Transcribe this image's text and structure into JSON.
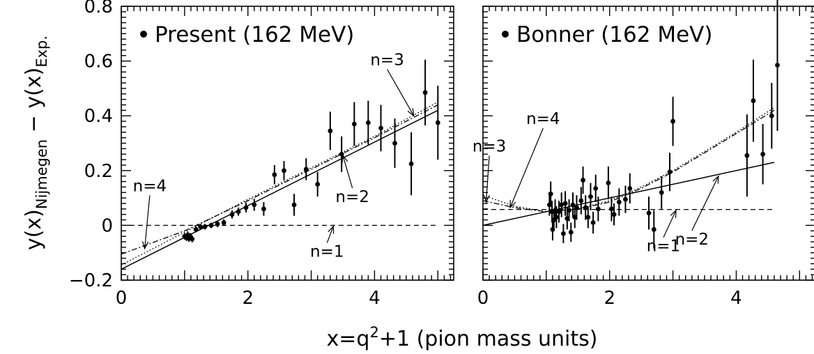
{
  "chart_data": [
    {
      "type": "scatter",
      "legend_text": "Present (162 MeV)",
      "legend_placement": "top-left",
      "xlim": [
        0,
        5.25
      ],
      "ylim": [
        -0.2,
        0.8
      ],
      "x_ticks": [
        0,
        2,
        4
      ],
      "y_ticks": [
        -0.2,
        0,
        0.2,
        0.4,
        0.6,
        0.8
      ],
      "y_tick_labels": [
        "−0.2",
        "0",
        "0.2",
        "0.4",
        "0.6",
        "0.8"
      ],
      "grid": false,
      "points": [
        {
          "x": 1.0,
          "y": -0.04,
          "err": 0.012
        },
        {
          "x": 1.03,
          "y": -0.045,
          "err": 0.012
        },
        {
          "x": 1.05,
          "y": -0.035,
          "err": 0.012
        },
        {
          "x": 1.07,
          "y": -0.048,
          "err": 0.012
        },
        {
          "x": 1.09,
          "y": -0.04,
          "err": 0.012
        },
        {
          "x": 1.12,
          "y": -0.05,
          "err": 0.012
        },
        {
          "x": 1.18,
          "y": -0.015,
          "err": 0.01
        },
        {
          "x": 1.25,
          "y": -0.005,
          "err": 0.01
        },
        {
          "x": 1.32,
          "y": -0.005,
          "err": 0.01
        },
        {
          "x": 1.42,
          "y": 0.0,
          "err": 0.01
        },
        {
          "x": 1.52,
          "y": 0.005,
          "err": 0.012
        },
        {
          "x": 1.62,
          "y": 0.01,
          "err": 0.012
        },
        {
          "x": 1.75,
          "y": 0.04,
          "err": 0.015
        },
        {
          "x": 1.85,
          "y": 0.05,
          "err": 0.015
        },
        {
          "x": 1.97,
          "y": 0.065,
          "err": 0.018
        },
        {
          "x": 2.1,
          "y": 0.075,
          "err": 0.022
        },
        {
          "x": 2.25,
          "y": 0.06,
          "err": 0.025
        },
        {
          "x": 2.42,
          "y": 0.185,
          "err": 0.035
        },
        {
          "x": 2.57,
          "y": 0.2,
          "err": 0.035
        },
        {
          "x": 2.73,
          "y": 0.075,
          "err": 0.04
        },
        {
          "x": 2.92,
          "y": 0.205,
          "err": 0.04
        },
        {
          "x": 3.1,
          "y": 0.15,
          "err": 0.045
        },
        {
          "x": 3.3,
          "y": 0.345,
          "err": 0.07
        },
        {
          "x": 3.48,
          "y": 0.26,
          "err": 0.065
        },
        {
          "x": 3.68,
          "y": 0.37,
          "err": 0.08
        },
        {
          "x": 3.9,
          "y": 0.375,
          "err": 0.08
        },
        {
          "x": 4.1,
          "y": 0.355,
          "err": 0.085
        },
        {
          "x": 4.32,
          "y": 0.3,
          "err": 0.09
        },
        {
          "x": 4.58,
          "y": 0.225,
          "err": 0.115
        },
        {
          "x": 4.8,
          "y": 0.485,
          "err": 0.12
        },
        {
          "x": 5.0,
          "y": 0.375,
          "err": 0.135
        }
      ],
      "fits": [
        {
          "name": "n=1",
          "style": "dashed",
          "x": [
            0,
            5
          ],
          "y": [
            0,
            0
          ]
        },
        {
          "name": "n=2",
          "style": "solid",
          "x": [
            0,
            5
          ],
          "y": [
            -0.16,
            0.42
          ]
        },
        {
          "name": "n=3",
          "style": "dotted",
          "x": [
            0,
            1,
            2,
            3,
            4,
            5
          ],
          "y": [
            -0.145,
            -0.025,
            0.095,
            0.21,
            0.325,
            0.45
          ]
        },
        {
          "name": "n=4",
          "style": "dashdot",
          "x": [
            0,
            1,
            2,
            3,
            4,
            5
          ],
          "y": [
            -0.105,
            -0.02,
            0.09,
            0.205,
            0.32,
            0.44
          ]
        }
      ],
      "labels": [
        {
          "text": "n=3",
          "x": 4.2,
          "y": 0.585,
          "to": [
            4.62,
            0.4
          ]
        },
        {
          "text": "n=2",
          "x": 3.65,
          "y": 0.085,
          "to": [
            3.5,
            0.255
          ]
        },
        {
          "text": "n=4",
          "x": 0.45,
          "y": 0.125,
          "to": [
            0.37,
            -0.085
          ]
        },
        {
          "text": "n=1",
          "x": 3.25,
          "y": -0.115,
          "to": [
            3.35,
            -0.003
          ]
        }
      ]
    },
    {
      "type": "scatter",
      "legend_text": "Bonner (162 MeV)",
      "legend_placement": "top-left",
      "xlim": [
        0,
        5.25
      ],
      "ylim": [
        -0.2,
        0.8
      ],
      "x_ticks": [
        0,
        2,
        4
      ],
      "grid": false,
      "points": [
        {
          "x": 1.05,
          "y": 0.075,
          "err": 0.04
        },
        {
          "x": 1.07,
          "y": 0.115,
          "err": 0.045
        },
        {
          "x": 1.09,
          "y": 0.05,
          "err": 0.04
        },
        {
          "x": 1.1,
          "y": -0.015,
          "err": 0.04
        },
        {
          "x": 1.12,
          "y": 0.02,
          "err": 0.04
        },
        {
          "x": 1.14,
          "y": 0.055,
          "err": 0.04
        },
        {
          "x": 1.16,
          "y": 0.03,
          "err": 0.04
        },
        {
          "x": 1.2,
          "y": 0.05,
          "err": 0.04
        },
        {
          "x": 1.24,
          "y": 0.075,
          "err": 0.045
        },
        {
          "x": 1.27,
          "y": -0.03,
          "err": 0.035
        },
        {
          "x": 1.3,
          "y": 0.08,
          "err": 0.045
        },
        {
          "x": 1.33,
          "y": 0.025,
          "err": 0.04
        },
        {
          "x": 1.36,
          "y": 0.055,
          "err": 0.04
        },
        {
          "x": 1.39,
          "y": -0.025,
          "err": 0.035
        },
        {
          "x": 1.42,
          "y": 0.075,
          "err": 0.045
        },
        {
          "x": 1.45,
          "y": 0.03,
          "err": 0.04
        },
        {
          "x": 1.48,
          "y": 0.065,
          "err": 0.045
        },
        {
          "x": 1.55,
          "y": 0.09,
          "err": 0.05
        },
        {
          "x": 1.58,
          "y": 0.165,
          "err": 0.05
        },
        {
          "x": 1.62,
          "y": 0.065,
          "err": 0.045
        },
        {
          "x": 1.66,
          "y": 0.03,
          "err": 0.04
        },
        {
          "x": 1.7,
          "y": 0.105,
          "err": 0.05
        },
        {
          "x": 1.74,
          "y": 0.01,
          "err": 0.04
        },
        {
          "x": 1.78,
          "y": 0.135,
          "err": 0.05
        },
        {
          "x": 1.82,
          "y": 0.06,
          "err": 0.045
        },
        {
          "x": 1.98,
          "y": 0.155,
          "err": 0.06
        },
        {
          "x": 2.03,
          "y": 0.06,
          "err": 0.045
        },
        {
          "x": 2.07,
          "y": 0.04,
          "err": 0.04
        },
        {
          "x": 2.15,
          "y": 0.085,
          "err": 0.05
        },
        {
          "x": 2.25,
          "y": 0.095,
          "err": 0.05
        },
        {
          "x": 2.32,
          "y": 0.135,
          "err": 0.055
        },
        {
          "x": 2.62,
          "y": 0.045,
          "err": 0.06
        },
        {
          "x": 2.7,
          "y": -0.015,
          "err": 0.07
        },
        {
          "x": 2.82,
          "y": 0.12,
          "err": 0.06
        },
        {
          "x": 2.95,
          "y": 0.195,
          "err": 0.07
        },
        {
          "x": 3.0,
          "y": 0.38,
          "err": 0.09
        },
        {
          "x": 4.17,
          "y": 0.255,
          "err": 0.15
        },
        {
          "x": 4.27,
          "y": 0.455,
          "err": 0.15
        },
        {
          "x": 4.42,
          "y": 0.26,
          "err": 0.11
        },
        {
          "x": 4.56,
          "y": 0.4,
          "err": 0.12
        },
        {
          "x": 4.65,
          "y": 0.585,
          "err": 0.24
        }
      ],
      "fits": [
        {
          "name": "n=1",
          "style": "dashed",
          "x": [
            0,
            4.6
          ],
          "y": [
            0.058,
            0.058
          ]
        },
        {
          "name": "n=2",
          "style": "solid",
          "x": [
            0,
            4.6
          ],
          "y": [
            0.0,
            0.23
          ]
        },
        {
          "name": "n=3",
          "style": "dotted",
          "x": [
            0,
            0.5,
            1,
            1.5,
            2,
            2.5,
            3,
            3.5,
            4,
            4.6
          ],
          "y": [
            0.11,
            0.07,
            0.05,
            0.06,
            0.09,
            0.14,
            0.2,
            0.27,
            0.34,
            0.43
          ]
        },
        {
          "name": "n=4",
          "style": "dashdot",
          "x": [
            0,
            0.5,
            1,
            1.5,
            2,
            2.5,
            3,
            3.5,
            4,
            4.6
          ],
          "y": [
            0.09,
            0.065,
            0.05,
            0.06,
            0.085,
            0.135,
            0.195,
            0.265,
            0.335,
            0.42
          ]
        }
      ],
      "labels": [
        {
          "text": "n=3",
          "x": 0.1,
          "y": 0.27,
          "to": [
            0.05,
            0.085
          ]
        },
        {
          "text": "n=4",
          "x": 0.95,
          "y": 0.37,
          "to": [
            0.43,
            0.065
          ]
        },
        {
          "text": "n=1",
          "x": 2.85,
          "y": -0.095,
          "to": [
            3.05,
            0.055
          ]
        },
        {
          "text": "n=2",
          "x": 3.3,
          "y": -0.07,
          "to": [
            3.72,
            0.18
          ]
        }
      ]
    }
  ],
  "x_axis_title": "x=q²+1 (pion mass units)",
  "y_axis_title": "y(x)Nijmegen − y(x)Exp.",
  "y_axis_title_parts": {
    "pre": "y(x)",
    "sub1": "Nijmegen",
    "mid": " − y(x)",
    "sub2": "Exp."
  }
}
